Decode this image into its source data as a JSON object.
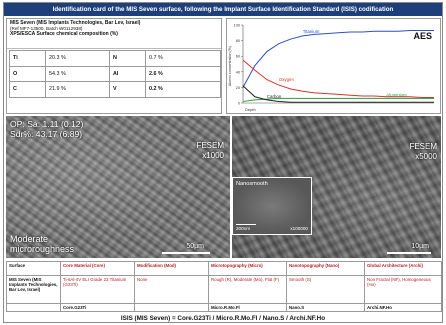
{
  "title": "Identification card of the MIS Seven surface, following the Implant Surface Identification Standard (ISIS) codification",
  "composition": {
    "product": "MIS Seven (MIS Implants Technologies, Bar Lev, Israel)",
    "ref": "(Ref MF7-13500, Batch W0112938)",
    "heading": "XPS/ESCA Surface chemical composition (%)",
    "rows": [
      {
        "s1": "Ti",
        "v1": "20.3 %",
        "s2": "N",
        "v2": "0.7 %"
      },
      {
        "s1": "O",
        "v1": "54.3 %",
        "s2": "Al",
        "v2": "2.6 %"
      },
      {
        "s1": "C",
        "v1": "21.9 %",
        "s2": "V",
        "v2": "0.2 %"
      }
    ]
  },
  "chart_data": {
    "type": "line",
    "title": "AES",
    "ylabel": "Atomic concentration (%)",
    "xlabel": "Depth",
    "x": [
      0,
      1,
      2,
      3,
      4,
      5,
      6,
      7,
      8,
      9,
      10,
      11,
      12,
      13,
      14,
      15,
      16
    ],
    "ylim": [
      0,
      100
    ],
    "series": [
      {
        "name": "Titanium",
        "color": "#2b4fc9",
        "values": [
          20,
          48,
          66,
          76,
          82,
          86,
          88,
          89,
          90,
          91,
          91,
          92,
          92,
          92,
          93,
          93,
          93
        ]
      },
      {
        "name": "Oxygen",
        "color": "#d8322f",
        "values": [
          55,
          42,
          30,
          23,
          18,
          15,
          13,
          12,
          11,
          10,
          9,
          9,
          8,
          8,
          8,
          7,
          7
        ]
      },
      {
        "name": "Aluminium",
        "color": "#2e9a3c",
        "values": [
          2,
          4,
          5,
          6,
          6,
          6,
          6,
          6,
          6,
          6,
          6,
          6,
          6,
          6,
          6,
          6,
          6
        ]
      },
      {
        "name": "Carbon",
        "color": "#222222",
        "values": [
          22,
          8,
          4,
          2,
          1,
          1,
          1,
          1,
          1,
          1,
          1,
          1,
          1,
          1,
          1,
          1,
          1
        ]
      }
    ]
  },
  "sem_left": {
    "metrics_line1": "OP: Sa: 1.11 (0.12)",
    "metrics_line2": "Sdr%: 43.17 (6.89)",
    "mode": "FESEM",
    "mag": "x1000",
    "roughness_line1": "Moderate",
    "roughness_line2": "microroughness",
    "scale": "50µm"
  },
  "sem_right": {
    "mode": "FESEM",
    "mag": "x5000",
    "scale": "10µm"
  },
  "inset": {
    "title": "Nanosmooth",
    "scale": "200nm",
    "mag": "x100000"
  },
  "isis": {
    "headers": [
      "Surface",
      "Core Material (Core)",
      "Modification (Mod)",
      "Microtopography (Micro)",
      "Nanotopography (Nano)",
      "Global Architecture (Archi)"
    ],
    "values": [
      "MIS Seven (MIS Implants Technologies, Bar Lev, Israel)",
      "Ti-6Al-4V ELI Grade 23 Titanium (G23Ti)",
      "None",
      "Rough (R), Moderate (Mo), Flat (F)",
      "Smooth (S)",
      "Non Fractal (NF), Homogeneous (Ho)"
    ],
    "codes": [
      "",
      "Core.G23Ti",
      "",
      "Micro.R.Mo.Fl",
      "Nano.S",
      "Archi.NF.Ho"
    ]
  },
  "footer": "ISIS (MIS Seven) = Core.G23Ti / Micro.R.Mo.Fl / Nano.S / Archi.NF.Ho"
}
